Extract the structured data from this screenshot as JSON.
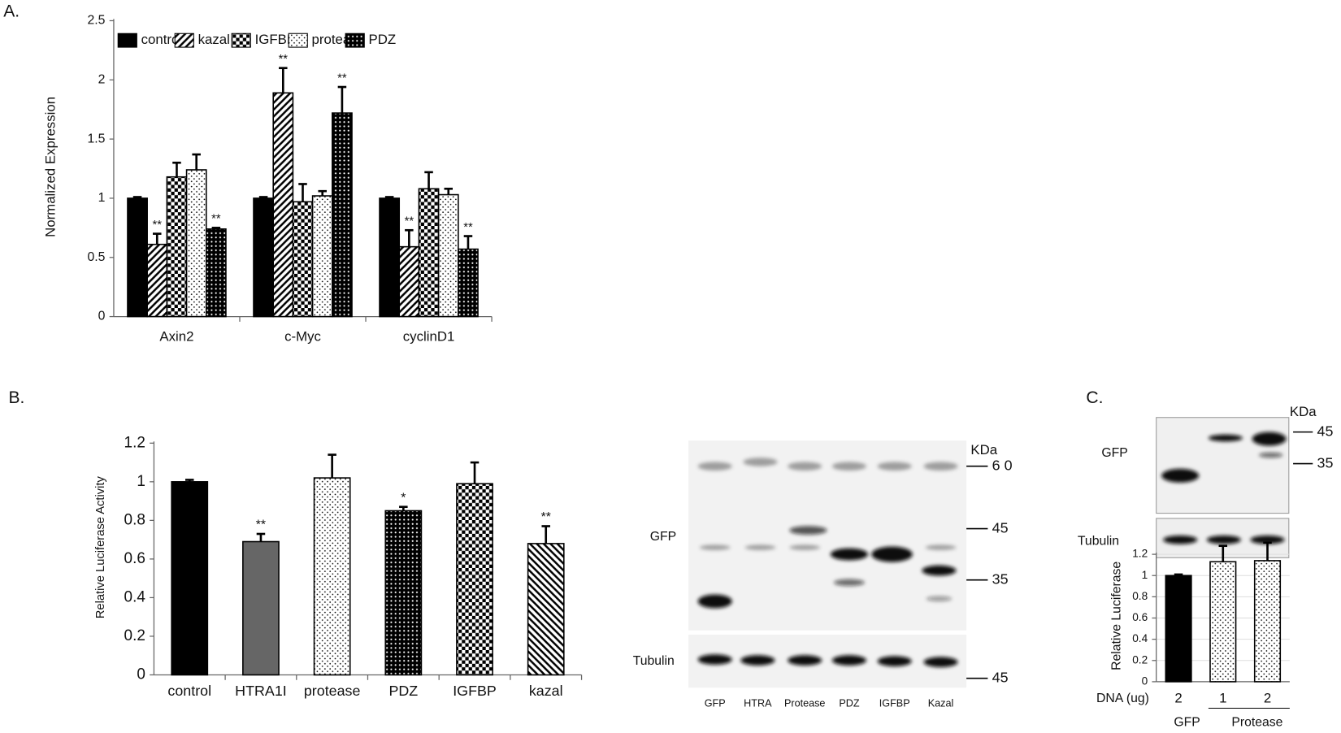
{
  "panels": [
    "A.",
    "B.",
    "C."
  ],
  "chart_data": [
    {
      "type": "bar",
      "y_label": "Normalized Expression",
      "categories": [
        "Axin2",
        "c-Myc",
        "cyclinD1"
      ],
      "ylim": [
        0,
        2.5
      ],
      "yticks": [
        0,
        0.5,
        1,
        1.5,
        2,
        2.5
      ],
      "series": [
        {
          "name": "control",
          "color": "#000000",
          "pattern": "solid",
          "values": [
            1,
            1,
            1
          ],
          "errors": [
            0.01,
            0.01,
            0.01
          ],
          "significance": [
            null,
            null,
            null
          ]
        },
        {
          "name": "kazal",
          "color": "#000000",
          "pattern": "hatch",
          "values": [
            0.61,
            1.89,
            0.59
          ],
          "errors": [
            0.09,
            0.21,
            0.14
          ],
          "significance": [
            "**",
            "**",
            "**"
          ]
        },
        {
          "name": "IGFBP",
          "color": "#000000",
          "pattern": "checker",
          "values": [
            1.18,
            0.97,
            1.08
          ],
          "errors": [
            0.12,
            0.15,
            0.14
          ],
          "significance": [
            null,
            null,
            null
          ]
        },
        {
          "name": "protease",
          "color": "#000000",
          "pattern": "dots",
          "values": [
            1.24,
            1.02,
            1.03
          ],
          "errors": [
            0.13,
            0.04,
            0.05
          ],
          "significance": [
            null,
            null,
            null
          ]
        },
        {
          "name": "PDZ",
          "color": "#000000",
          "pattern": "densedots",
          "values": [
            0.74,
            1.72,
            0.57
          ],
          "errors": [
            0.01,
            0.22,
            0.11
          ],
          "significance": [
            "**",
            "**",
            "**"
          ]
        }
      ]
    },
    {
      "type": "bar",
      "y_label": "Relative Luciferase Activity",
      "categories": [
        "control",
        "HTRA1I",
        "protease",
        "PDZ",
        "IGFBP",
        "kazal"
      ],
      "values": [
        1,
        0.69,
        1.02,
        0.85,
        0.99,
        0.68
      ],
      "errors": [
        0.01,
        0.04,
        0.12,
        0.02,
        0.11,
        0.09
      ],
      "significance": [
        null,
        "**",
        null,
        "*",
        null,
        "**"
      ],
      "colors": [
        "#000000",
        "#666666",
        "#000000",
        "#000000",
        "#000000",
        "#000000"
      ],
      "patterns": [
        "solid",
        "solid",
        "dots",
        "densedots",
        "checker",
        "hatchback"
      ],
      "ylim": [
        0,
        1.2
      ],
      "yticks": [
        0,
        0.2,
        0.4,
        0.6,
        0.8,
        1,
        1.2
      ]
    },
    {
      "type": "bar",
      "y_label": "Relative Luciferase",
      "x_label": "DNA (ug)",
      "categories": [
        "2",
        "1",
        "2"
      ],
      "groups": [
        "GFP",
        "Protease"
      ],
      "values": [
        1,
        1.13,
        1.14
      ],
      "errors": [
        0.01,
        0.15,
        0.17
      ],
      "colors": [
        "#000000",
        "#000000",
        "#000000"
      ],
      "patterns": [
        "solid",
        "dots",
        "dots"
      ],
      "ylim": [
        0,
        1.2
      ],
      "yticks": [
        0,
        0.2,
        0.4,
        0.6,
        0.8,
        1,
        1.2
      ],
      "grid": true
    }
  ],
  "blot_b": {
    "unit": "KDa",
    "rows": [
      "GFP",
      "Tubulin"
    ],
    "lanes": [
      "GFP",
      "HTRA",
      "Protease",
      "PDZ",
      "IGFBP",
      "Kazal"
    ],
    "markers": [
      "6 0",
      "45",
      "35",
      "45"
    ]
  },
  "blot_c": {
    "unit": "KDa",
    "rows": [
      "GFP",
      "Tubulin"
    ],
    "markers": [
      "45",
      "35"
    ]
  }
}
